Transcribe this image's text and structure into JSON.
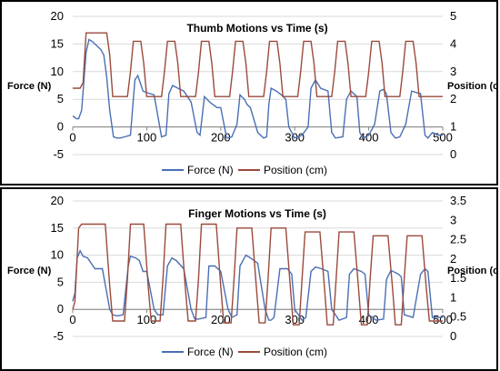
{
  "colors": {
    "force": "#4a6fb5",
    "position": "#9b4a3c"
  },
  "chart_data": [
    {
      "type": "line",
      "title": "Thumb Motions vs Time (s)",
      "xlabel": "",
      "ylabel": "Force (N)",
      "y2label": "Position (cm)",
      "xlim": [
        0,
        500
      ],
      "ylim": [
        -5,
        20
      ],
      "y2lim": [
        0,
        5
      ],
      "xticks": [
        0,
        100,
        200,
        300,
        400,
        500
      ],
      "yticks": [
        -5,
        0,
        5,
        10,
        15,
        20
      ],
      "y2ticks": [
        0,
        1,
        2,
        3,
        4,
        5
      ],
      "grid": true,
      "legend": "bottom",
      "series": [
        {
          "name": "Force (N)",
          "axis": "left",
          "color": "#4a6fb5",
          "x": [
            0,
            5,
            8,
            12,
            18,
            22,
            26,
            30,
            34,
            38,
            42,
            46,
            50,
            55,
            60,
            64,
            70,
            78,
            84,
            88,
            95,
            100,
            110,
            120,
            126,
            130,
            135,
            142,
            150,
            160,
            168,
            172,
            178,
            185,
            190,
            195,
            200,
            208,
            215,
            222,
            226,
            232,
            236,
            240,
            250,
            258,
            262,
            265,
            268,
            275,
            282,
            288,
            292,
            300,
            310,
            318,
            322,
            328,
            335,
            345,
            350,
            355,
            365,
            370,
            376,
            380,
            384,
            388,
            392,
            400,
            408,
            415,
            420,
            424,
            430,
            436,
            442,
            450,
            458,
            465,
            470,
            476,
            480,
            486,
            494,
            500
          ],
          "y": [
            2.0,
            1.5,
            1.5,
            3.0,
            13.5,
            15.8,
            15.5,
            15.0,
            14.5,
            14.0,
            13.0,
            9.0,
            3.0,
            -1.8,
            -2.0,
            -2.0,
            -1.8,
            -1.5,
            8.5,
            9.3,
            6.5,
            6.2,
            5.8,
            -1.8,
            -1.5,
            6.0,
            7.5,
            7.0,
            6.5,
            4.5,
            -1.0,
            -1.5,
            5.5,
            4.5,
            4.0,
            3.5,
            3.5,
            -2.0,
            -1.8,
            0.5,
            5.8,
            5.0,
            4.0,
            3.5,
            -1.0,
            -2.0,
            -1.8,
            4.0,
            7.0,
            6.5,
            5.8,
            5.0,
            0.0,
            -2.0,
            -1.5,
            0.0,
            7.0,
            8.5,
            7.0,
            6.5,
            -1.0,
            -2.0,
            -1.8,
            5.0,
            6.5,
            6.0,
            5.5,
            -1.0,
            -2.0,
            -1.5,
            0.5,
            6.5,
            6.8,
            6.0,
            -1.0,
            -2.0,
            -1.8,
            0.5,
            6.5,
            6.2,
            6.0,
            -1.5,
            -2.0,
            -1.0,
            -1.5,
            -1.5
          ]
        },
        {
          "name": "Position (cm)",
          "axis": "right",
          "color": "#9b4a3c",
          "x": [
            0,
            10,
            14,
            18,
            46,
            50,
            54,
            60,
            74,
            78,
            82,
            92,
            96,
            100,
            120,
            124,
            128,
            138,
            142,
            146,
            166,
            170,
            174,
            184,
            188,
            192,
            212,
            216,
            220,
            230,
            234,
            238,
            258,
            262,
            266,
            276,
            280,
            284,
            304,
            308,
            312,
            322,
            326,
            330,
            350,
            354,
            358,
            368,
            372,
            376,
            396,
            400,
            404,
            414,
            418,
            422,
            442,
            446,
            450,
            460,
            464,
            468,
            488,
            492,
            500
          ],
          "y": [
            2.4,
            2.4,
            2.6,
            4.4,
            4.4,
            3.6,
            2.1,
            2.1,
            2.1,
            3.0,
            4.1,
            4.1,
            3.3,
            2.1,
            2.1,
            3.0,
            4.1,
            4.1,
            3.3,
            2.1,
            2.1,
            3.0,
            4.1,
            4.1,
            3.3,
            2.1,
            2.1,
            3.0,
            4.1,
            4.1,
            3.3,
            2.1,
            2.1,
            3.0,
            4.1,
            4.1,
            3.3,
            2.1,
            2.1,
            3.0,
            4.1,
            4.1,
            3.3,
            2.1,
            2.1,
            3.0,
            4.1,
            4.1,
            3.3,
            2.1,
            2.1,
            3.0,
            4.1,
            4.1,
            3.3,
            2.1,
            2.1,
            3.0,
            4.1,
            4.1,
            3.3,
            2.1,
            2.1,
            2.1,
            2.1
          ]
        }
      ]
    },
    {
      "type": "line",
      "title": "Finger Motions vs Time (s)",
      "xlabel": "",
      "ylabel": "Force (N)",
      "y2label": "Position (cm)",
      "xlim": [
        0,
        500
      ],
      "ylim": [
        -5,
        20
      ],
      "y2lim": [
        0,
        3.5
      ],
      "xticks": [
        0,
        100,
        200,
        300,
        400,
        500
      ],
      "yticks": [
        -5,
        0,
        5,
        10,
        15,
        20
      ],
      "y2ticks": [
        0,
        0.5,
        1,
        1.5,
        2,
        2.5,
        3,
        3.5
      ],
      "grid": true,
      "legend": "bottom",
      "series": [
        {
          "name": "Force (N)",
          "axis": "left",
          "color": "#4a6fb5",
          "x": [
            0,
            3,
            6,
            10,
            14,
            20,
            30,
            40,
            50,
            54,
            60,
            68,
            75,
            78,
            85,
            90,
            95,
            100,
            110,
            115,
            122,
            128,
            134,
            140,
            150,
            160,
            165,
            170,
            180,
            184,
            192,
            200,
            210,
            215,
            222,
            226,
            234,
            240,
            250,
            260,
            265,
            268,
            272,
            280,
            290,
            296,
            300,
            310,
            315,
            322,
            328,
            336,
            345,
            350,
            360,
            370,
            374,
            380,
            390,
            395,
            400,
            410,
            420,
            424,
            430,
            440,
            444,
            448,
            460,
            470,
            476,
            480,
            486,
            494,
            500
          ],
          "y": [
            1.5,
            3.0,
            9.5,
            10.8,
            9.8,
            9.5,
            7.5,
            7.5,
            0.0,
            -1.0,
            -1.2,
            -1.0,
            8.0,
            9.8,
            9.5,
            9.0,
            7.0,
            7.0,
            0.0,
            -1.0,
            -1.0,
            8.0,
            9.5,
            9.0,
            7.5,
            0.0,
            -1.8,
            -1.8,
            -1.5,
            8.0,
            8.0,
            7.0,
            0.0,
            -1.5,
            -1.0,
            8.0,
            10.0,
            9.5,
            8.5,
            0.0,
            -2.0,
            -2.0,
            -1.5,
            7.5,
            7.5,
            6.5,
            0.0,
            -2.0,
            -1.5,
            7.0,
            7.8,
            7.5,
            7.0,
            0.0,
            -2.0,
            -1.5,
            6.5,
            7.5,
            7.0,
            6.5,
            -1.0,
            -2.0,
            -1.8,
            5.5,
            7.2,
            6.5,
            6.0,
            -1.0,
            -1.5,
            6.5,
            7.5,
            7.0,
            -1.5,
            -1.5,
            -1.5
          ]
        },
        {
          "name": "Position (cm)",
          "axis": "right",
          "color": "#9b4a3c",
          "x": [
            0,
            3,
            8,
            12,
            44,
            50,
            54,
            70,
            74,
            78,
            96,
            102,
            106,
            118,
            122,
            126,
            146,
            152,
            156,
            166,
            170,
            174,
            194,
            200,
            204,
            214,
            218,
            222,
            242,
            248,
            252,
            260,
            264,
            268,
            288,
            294,
            298,
            306,
            310,
            314,
            334,
            340,
            344,
            352,
            356,
            360,
            380,
            386,
            390,
            398,
            402,
            406,
            426,
            432,
            436,
            444,
            448,
            452,
            472,
            478,
            482,
            500
          ],
          "y": [
            0.7,
            0.9,
            2.8,
            2.9,
            2.9,
            1.3,
            0.4,
            0.4,
            1.5,
            2.9,
            2.9,
            1.3,
            0.4,
            0.4,
            1.5,
            2.9,
            2.9,
            1.3,
            0.4,
            0.4,
            1.5,
            2.9,
            2.9,
            1.3,
            0.35,
            0.35,
            1.5,
            2.8,
            2.8,
            1.3,
            0.35,
            0.35,
            1.5,
            2.8,
            2.8,
            1.3,
            0.3,
            0.3,
            1.5,
            2.7,
            2.7,
            1.3,
            0.3,
            0.3,
            1.5,
            2.7,
            2.7,
            1.3,
            0.3,
            0.3,
            1.5,
            2.6,
            2.6,
            1.3,
            0.3,
            0.3,
            1.5,
            2.6,
            2.6,
            1.2,
            0.4,
            0.4
          ]
        }
      ]
    }
  ]
}
